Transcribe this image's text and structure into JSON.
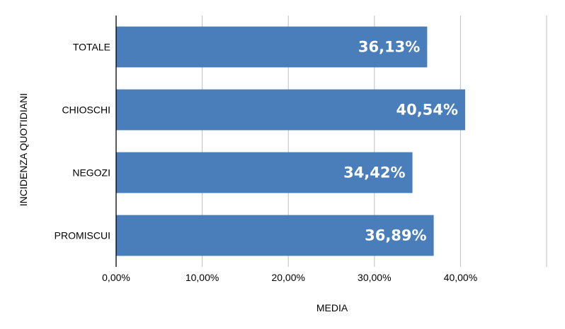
{
  "chart_data": {
    "type": "bar",
    "orientation": "horizontal",
    "categories": [
      "TOTALE",
      "CHIOSCHI",
      "NEGOZI",
      "PROMISCUI"
    ],
    "values": [
      36.13,
      40.54,
      34.42,
      36.89
    ],
    "data_labels": [
      "36,13%",
      "40,54%",
      "34,42%",
      "36,89%"
    ],
    "xlabel": "MEDIA",
    "ylabel": "INCIDENZA QUOTIDIANI",
    "xlim": [
      0,
      50
    ],
    "x_ticks": [
      0,
      10,
      20,
      30,
      40
    ],
    "x_tick_labels": [
      "0,00%",
      "10,00%",
      "20,00%",
      "30,00%",
      "40,00%"
    ],
    "grid": "vertical",
    "legend": "none",
    "bar_color": "#4a7ebb",
    "grid_color": "#bfbfbf",
    "axis_color": "#000000",
    "label_color": "#ffffff"
  }
}
